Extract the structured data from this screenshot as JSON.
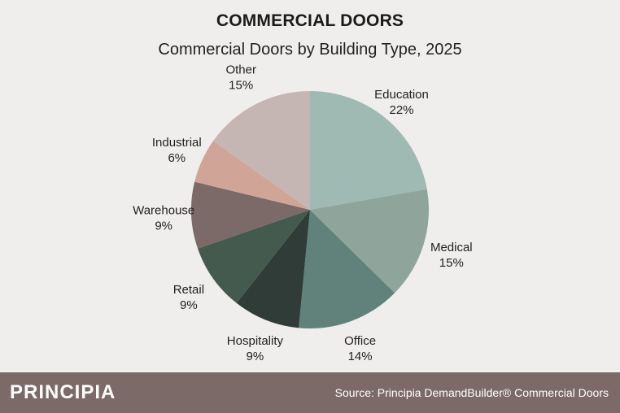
{
  "header": {
    "title": "COMMERCIAL DOORS"
  },
  "chart_data": {
    "type": "pie",
    "title": "Commercial Doors by Building Type, 2025",
    "slices": [
      {
        "label": "Education",
        "value": 22,
        "value_label": "22%",
        "color": "#9fb9b3"
      },
      {
        "label": "Medical",
        "value": 15,
        "value_label": "15%",
        "color": "#8fa59b"
      },
      {
        "label": "Office",
        "value": 14,
        "value_label": "14%",
        "color": "#60827a"
      },
      {
        "label": "Hospitality",
        "value": 9,
        "value_label": "9%",
        "color": "#2f3c37"
      },
      {
        "label": "Retail",
        "value": 9,
        "value_label": "9%",
        "color": "#445a4e"
      },
      {
        "label": "Warehouse",
        "value": 9,
        "value_label": "9%",
        "color": "#7b6a68"
      },
      {
        "label": "Industrial",
        "value": 6,
        "value_label": "6%",
        "color": "#d0a598"
      },
      {
        "label": "Other",
        "value": 15,
        "value_label": "15%",
        "color": "#c6b6b3"
      }
    ]
  },
  "footer": {
    "brand": "PRINCIPIA",
    "source": "Source: Principia DemandBuilder® Commercial Doors"
  }
}
